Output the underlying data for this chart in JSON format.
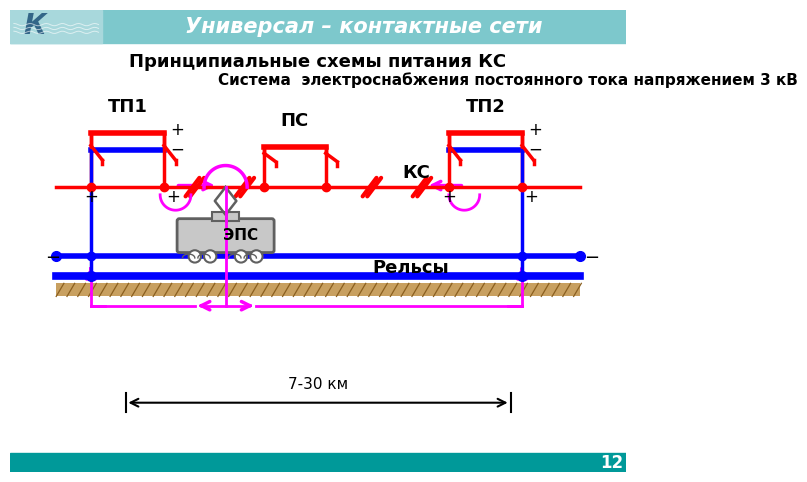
{
  "title_header": "Универсал – контактные сети",
  "title_main": "Принципиальные схемы питания КС",
  "subtitle": "Система  электроснабжения постоянного тока напряжением 3 кВ",
  "label_tp1": "ТП1",
  "label_tp2": "ТП2",
  "label_ps": "ПС",
  "label_ks": "КС",
  "label_eps": "ЭПС",
  "label_relsy": "Рельсы",
  "label_dist": "7-30 км",
  "page_num": "12",
  "color_red": "#FF0000",
  "color_blue": "#0000FF",
  "color_magenta": "#FF00FF",
  "color_header_bg": "#7DC8CC",
  "color_header_text": "#FFFFFF",
  "color_footer_bg": "#009999",
  "color_black": "#000000",
  "color_white": "#FFFFFF",
  "color_gray": "#909090",
  "color_gray_dark": "#606060",
  "color_hatching_bg": "#C8A060",
  "color_hatching_line": "#8B6020"
}
